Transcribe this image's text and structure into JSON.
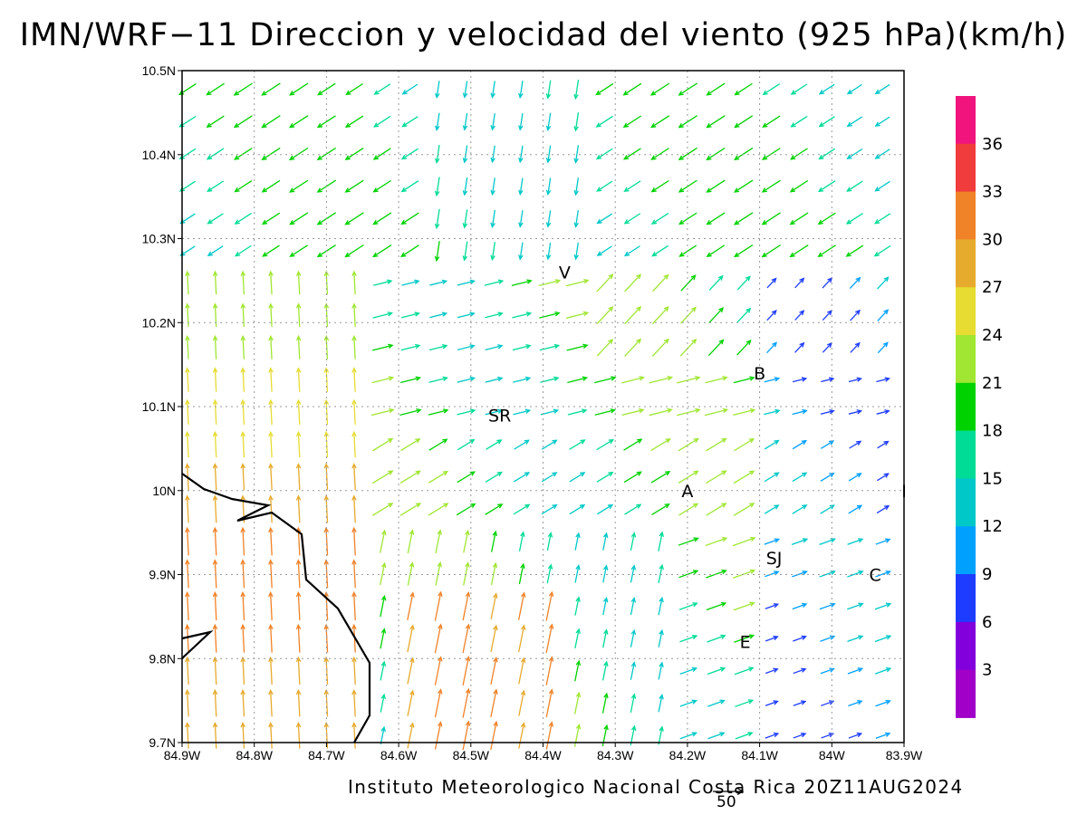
{
  "title": "IMN/WRF−11 Direccion y velocidad del viento (925 hPa)(km/h)",
  "map": {
    "type": "wind-vector-field",
    "level": "925 hPa",
    "units": "km/h",
    "lon_labels": [
      "84.9W",
      "84.8W",
      "84.7W",
      "84.6W",
      "84.5W",
      "84.4W",
      "84.3W",
      "84.2W",
      "84.1W",
      "84W",
      "83.9W"
    ],
    "lat_labels": [
      "10.5N",
      "10.4N",
      "10.3N",
      "10.2N",
      "10.1N",
      "10N",
      "9.9N",
      "9.8N",
      "9.7N"
    ],
    "lon_range": [
      -84.9,
      -83.9
    ],
    "lat_range": [
      9.7,
      10.5
    ],
    "grid": "dotted",
    "places": [
      {
        "label": "V",
        "lon": -84.37,
        "lat": 10.26
      },
      {
        "label": "SR",
        "lon": -84.46,
        "lat": 10.09
      },
      {
        "label": "B",
        "lon": -84.1,
        "lat": 10.14
      },
      {
        "label": "A",
        "lon": -84.2,
        "lat": 10.0
      },
      {
        "label": "I",
        "lon": -83.9,
        "lat": 10.0
      },
      {
        "label": "SJ",
        "lon": -84.08,
        "lat": 9.92
      },
      {
        "label": "C",
        "lon": -83.94,
        "lat": 9.9
      },
      {
        "label": "E",
        "lon": -84.12,
        "lat": 9.82
      }
    ],
    "colorbar": {
      "labels": [
        "36",
        "33",
        "30",
        "27",
        "24",
        "21",
        "18",
        "15",
        "12",
        "9",
        "6",
        "3"
      ],
      "colors": [
        "#f0147c",
        "#f03c3c",
        "#f08228",
        "#e6aa2d",
        "#e6dc32",
        "#a0e632",
        "#00d200",
        "#00dc96",
        "#00c8c8",
        "#00a0ff",
        "#1e3cff",
        "#8200dc",
        "#a000c8"
      ]
    },
    "reference_vector": "50"
  },
  "footer": "Instituto Meteorologico Nacional Costa Rica 20Z11AUG2024"
}
